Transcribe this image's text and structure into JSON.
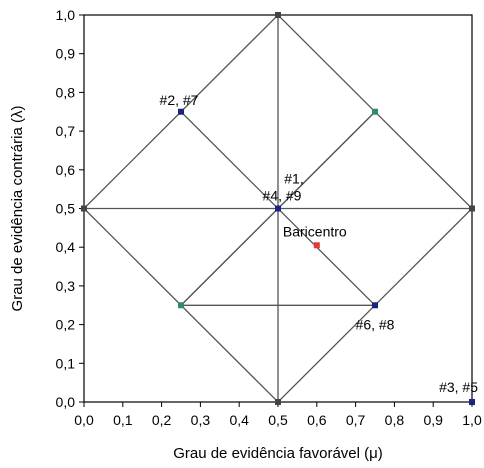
{
  "chart_data": {
    "type": "scatter",
    "xlabel": "Grau de evidência favorável (μ)",
    "ylabel": "Grau de evidência contrária (λ)",
    "xlim": [
      0.0,
      1.0
    ],
    "ylim": [
      0.0,
      1.0
    ],
    "x_ticks": [
      "0,0",
      "0,1",
      "0,2",
      "0,3",
      "0,4",
      "0,5",
      "0,6",
      "0,7",
      "0,8",
      "0,9",
      "1,0"
    ],
    "y_ticks": [
      "0,0",
      "0,1",
      "0,2",
      "0,3",
      "0,4",
      "0,5",
      "0,6",
      "0,7",
      "0,8",
      "0,9",
      "1,0"
    ],
    "grid": false,
    "reference_lines": [
      {
        "x": [
          0.5,
          0.5
        ],
        "y": [
          0.0,
          1.0
        ]
      },
      {
        "x": [
          0.0,
          1.0
        ],
        "y": [
          0.5,
          0.5
        ]
      },
      {
        "x": [
          0.0,
          0.5,
          1.0,
          0.5,
          0.0
        ],
        "y": [
          0.5,
          1.0,
          0.5,
          0.0,
          0.5
        ]
      },
      {
        "x": [
          0.25,
          0.75,
          0.25
        ],
        "y": [
          0.75,
          0.25,
          0.25
        ]
      },
      {
        "x": [
          0.25,
          0.75
        ],
        "y": [
          0.25,
          0.75
        ]
      },
      {
        "x": [
          0.75,
          0.25
        ],
        "y": [
          0.75,
          0.25
        ]
      }
    ],
    "points": [
      {
        "x": 0.5,
        "y": 1.0,
        "color": "#444444"
      },
      {
        "x": 1.0,
        "y": 0.5,
        "color": "#444444"
      },
      {
        "x": 0.0,
        "y": 0.5,
        "color": "#444444"
      },
      {
        "x": 0.5,
        "y": 0.0,
        "color": "#444444"
      },
      {
        "x": 0.75,
        "y": 0.75,
        "color": "#2e8b6e"
      },
      {
        "x": 0.25,
        "y": 0.25,
        "color": "#2e8b6e"
      },
      {
        "x": 0.25,
        "y": 0.75,
        "color": "#1a237e",
        "label": "#2, #7",
        "label_pos": "above"
      },
      {
        "x": 0.5,
        "y": 0.5,
        "color": "#1a237e",
        "label": "#1,\n#4, #9",
        "label_pos": "above"
      },
      {
        "x": 0.75,
        "y": 0.25,
        "color": "#1a237e",
        "label": "#6, #8",
        "label_pos": "below"
      },
      {
        "x": 1.0,
        "y": 0.0,
        "color": "#1a237e",
        "label": "#3, #5",
        "label_pos": "above-left"
      },
      {
        "x": 0.6,
        "y": 0.405,
        "color": "#e53935",
        "label": "Baricentro",
        "label_pos": "above"
      }
    ]
  }
}
